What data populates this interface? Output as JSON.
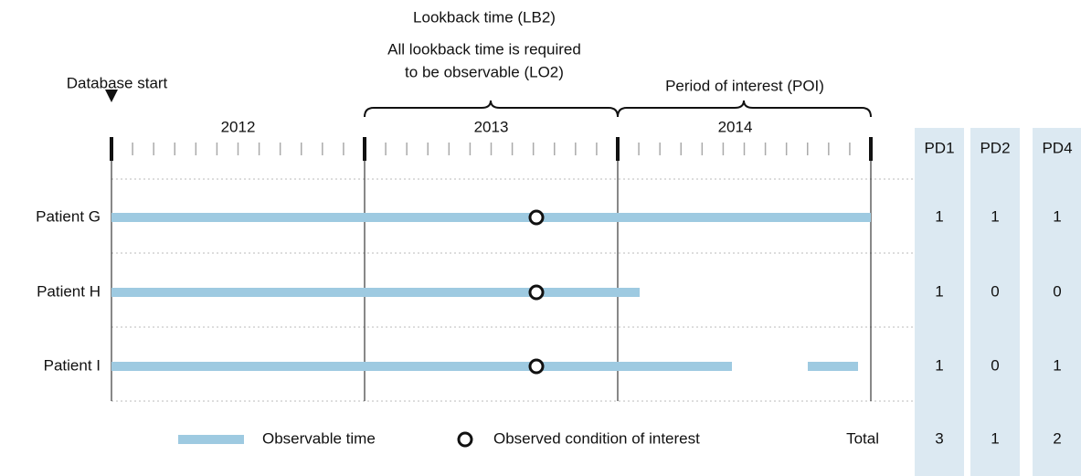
{
  "header": {
    "title": "Lookback time (LB2)",
    "note": [
      "All lookback time is required",
      "to be observable (LO2)"
    ],
    "period_label": "Period of interest (POI)",
    "database_start": "Database start"
  },
  "years": [
    "2012",
    "2013",
    "2014"
  ],
  "columns": [
    "PD1",
    "PD2",
    "PD4"
  ],
  "patients": [
    {
      "name": "Patient G",
      "values": [
        1,
        1,
        1
      ]
    },
    {
      "name": "Patient H",
      "values": [
        1,
        0,
        0
      ]
    },
    {
      "name": "Patient I",
      "values": [
        1,
        0,
        1
      ]
    }
  ],
  "total": {
    "label": "Total",
    "values": [
      3,
      1,
      2
    ]
  },
  "legend": {
    "observable": "Observable time",
    "condition": "Observed condition of interest"
  }
}
